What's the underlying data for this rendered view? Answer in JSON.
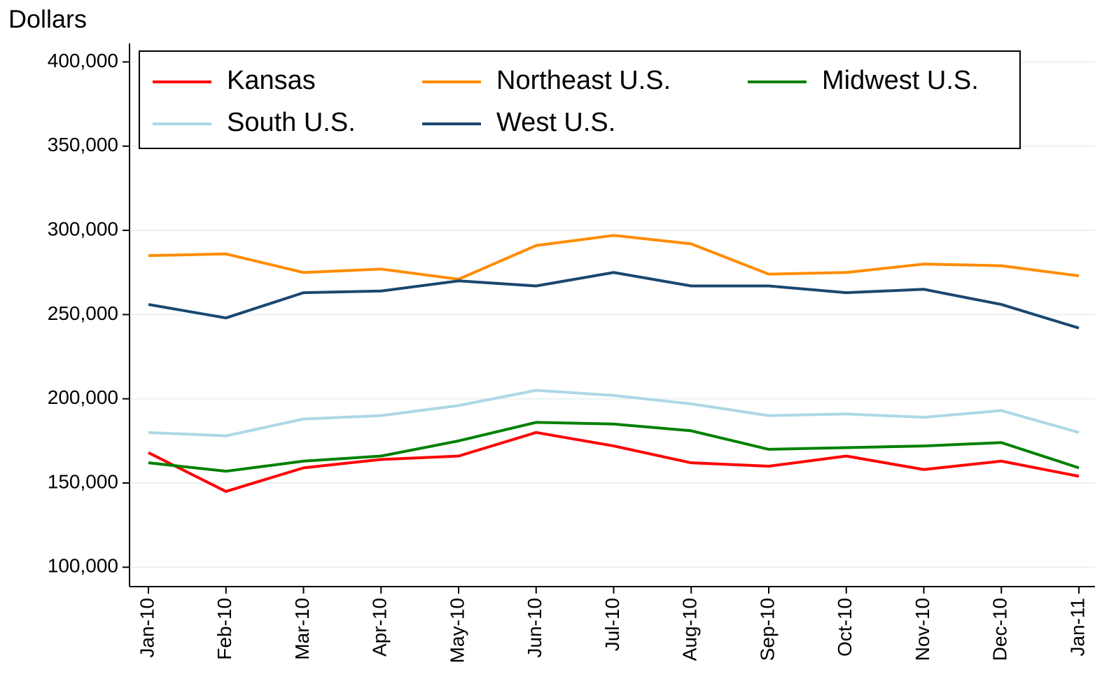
{
  "chart_data": {
    "type": "line",
    "y_label": "Dollars",
    "categories": [
      "Jan-10",
      "Feb-10",
      "Mar-10",
      "Apr-10",
      "May-10",
      "Jun-10",
      "Jul-10",
      "Aug-10",
      "Sep-10",
      "Oct-10",
      "Nov-10",
      "Dec-10",
      "Jan-11"
    ],
    "series": [
      {
        "name": "Kansas",
        "color": "#ff0000",
        "values": [
          168000,
          145000,
          159000,
          164000,
          166000,
          180000,
          172000,
          162000,
          160000,
          166000,
          158000,
          163000,
          154000
        ]
      },
      {
        "name": "Northeast U.S.",
        "color": "#ff8c00",
        "values": [
          285000,
          286000,
          275000,
          277000,
          271000,
          291000,
          297000,
          292000,
          274000,
          275000,
          280000,
          279000,
          273000
        ]
      },
      {
        "name": "Midwest U.S.",
        "color": "#008000",
        "values": [
          162000,
          157000,
          163000,
          166000,
          175000,
          186000,
          185000,
          181000,
          170000,
          171000,
          172000,
          174000,
          159000
        ]
      },
      {
        "name": "South U.S.",
        "color": "#add8e6",
        "values": [
          180000,
          178000,
          188000,
          190000,
          196000,
          205000,
          202000,
          197000,
          190000,
          191000,
          189000,
          193000,
          180000
        ]
      },
      {
        "name": "West U.S.",
        "color": "#1a476f",
        "values": [
          256000,
          248000,
          263000,
          264000,
          270000,
          267000,
          275000,
          267000,
          267000,
          263000,
          265000,
          256000,
          242000
        ]
      }
    ],
    "ylim": [
      88500,
      411000
    ],
    "yticks": [
      {
        "value": 100000,
        "label": "100,000"
      },
      {
        "value": 150000,
        "label": "150,000"
      },
      {
        "value": 200000,
        "label": "200,000"
      },
      {
        "value": 250000,
        "label": "250,000"
      },
      {
        "value": 300000,
        "label": "300,000"
      },
      {
        "value": 350000,
        "label": "350,000"
      },
      {
        "value": 400000,
        "label": "400,000"
      }
    ],
    "grid": true,
    "legend": "top"
  }
}
